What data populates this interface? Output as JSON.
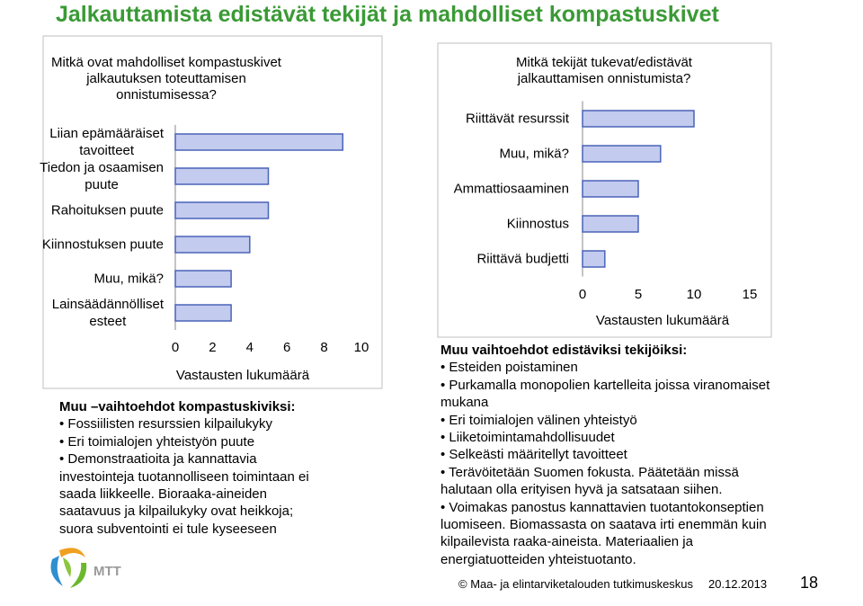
{
  "title": "Jalkauttamista edistävät tekijät ja mahdolliset kompastuskivet",
  "chart_data": [
    {
      "type": "barh",
      "title": "Mitkä ovat mahdolliset kompastuskivet\njalkautuksen toteuttamisen\nonnistumisessa?",
      "categories": [
        "Liian epämääräiset\ntavoitteet",
        "Tiedon ja osaamisen\npuute",
        "Rahoituksen puute",
        "Kiinnostuksen puute",
        "Muu, mikä?",
        "Lainsäädännölliset\nesteet"
      ],
      "values": [
        9,
        5,
        5,
        4,
        3,
        3
      ],
      "color": "#c3cbee",
      "edge_color": "#4a63b8",
      "xlim": [
        0,
        10
      ],
      "xticks": [
        0,
        2,
        4,
        6,
        8,
        10
      ],
      "xlabel": "Vastausten lukumäärä"
    },
    {
      "type": "barh",
      "title": "Mitkä tekijät tukevat/edistävät\njalkauttamisen onnistumista?",
      "categories": [
        "Riittävät resurssit",
        "Muu, mikä?",
        "Ammattiosaaminen",
        "Kiinnostus",
        "Riittävä budjetti"
      ],
      "values": [
        10,
        7,
        5,
        5,
        2
      ],
      "color": "#c3cbee",
      "edge_color": "#4a63b8",
      "xlim": [
        0,
        15
      ],
      "xticks": [
        0,
        5,
        10,
        15
      ],
      "xlabel": "Vastausten lukumäärä"
    }
  ],
  "left_notes": {
    "heading": "Muu –vaihtoehdot kompastuskiviksi:",
    "items": [
      "Fossiilisten resurssien kilpailukyky",
      "Eri toimialojen yhteistyön puute",
      "Demonstraatioita ja kannattavia investointeja tuotannolliseen toimintaan ei saada liikkeelle. Bioraaka-aineiden saatavuus ja kilpailukyky ovat heikkoja; suora subventointi ei tule kyseeseen"
    ]
  },
  "right_notes": {
    "heading": "Muu vaihtoehdot edistäviksi tekijöiksi:",
    "items": [
      "Esteiden poistaminen",
      "Purkamalla monopolien kartelleita joissa viranomaiset mukana",
      "Eri toimialojen välinen yhteistyö",
      "Liiketoimintamahdollisuudet",
      "Selkeästi määritellyt tavoitteet",
      "Terävöitetään Suomen fokusta. Päätetään missä halutaan olla erityisen hyvä ja satsataan siihen.",
      "Voimakas panostus kannattavien tuotantokonseptien luomiseen. Biomassasta on saatava irti enemmän kuin kilpailevista raaka-aineista. Materiaalien ja energiatuotteiden yhteistuotanto."
    ]
  },
  "logo_text": "MTT",
  "footer": {
    "organization": "© Maa- ja elintarviketalouden tutkimuskeskus",
    "date": "20.12.2013",
    "page": "18"
  }
}
